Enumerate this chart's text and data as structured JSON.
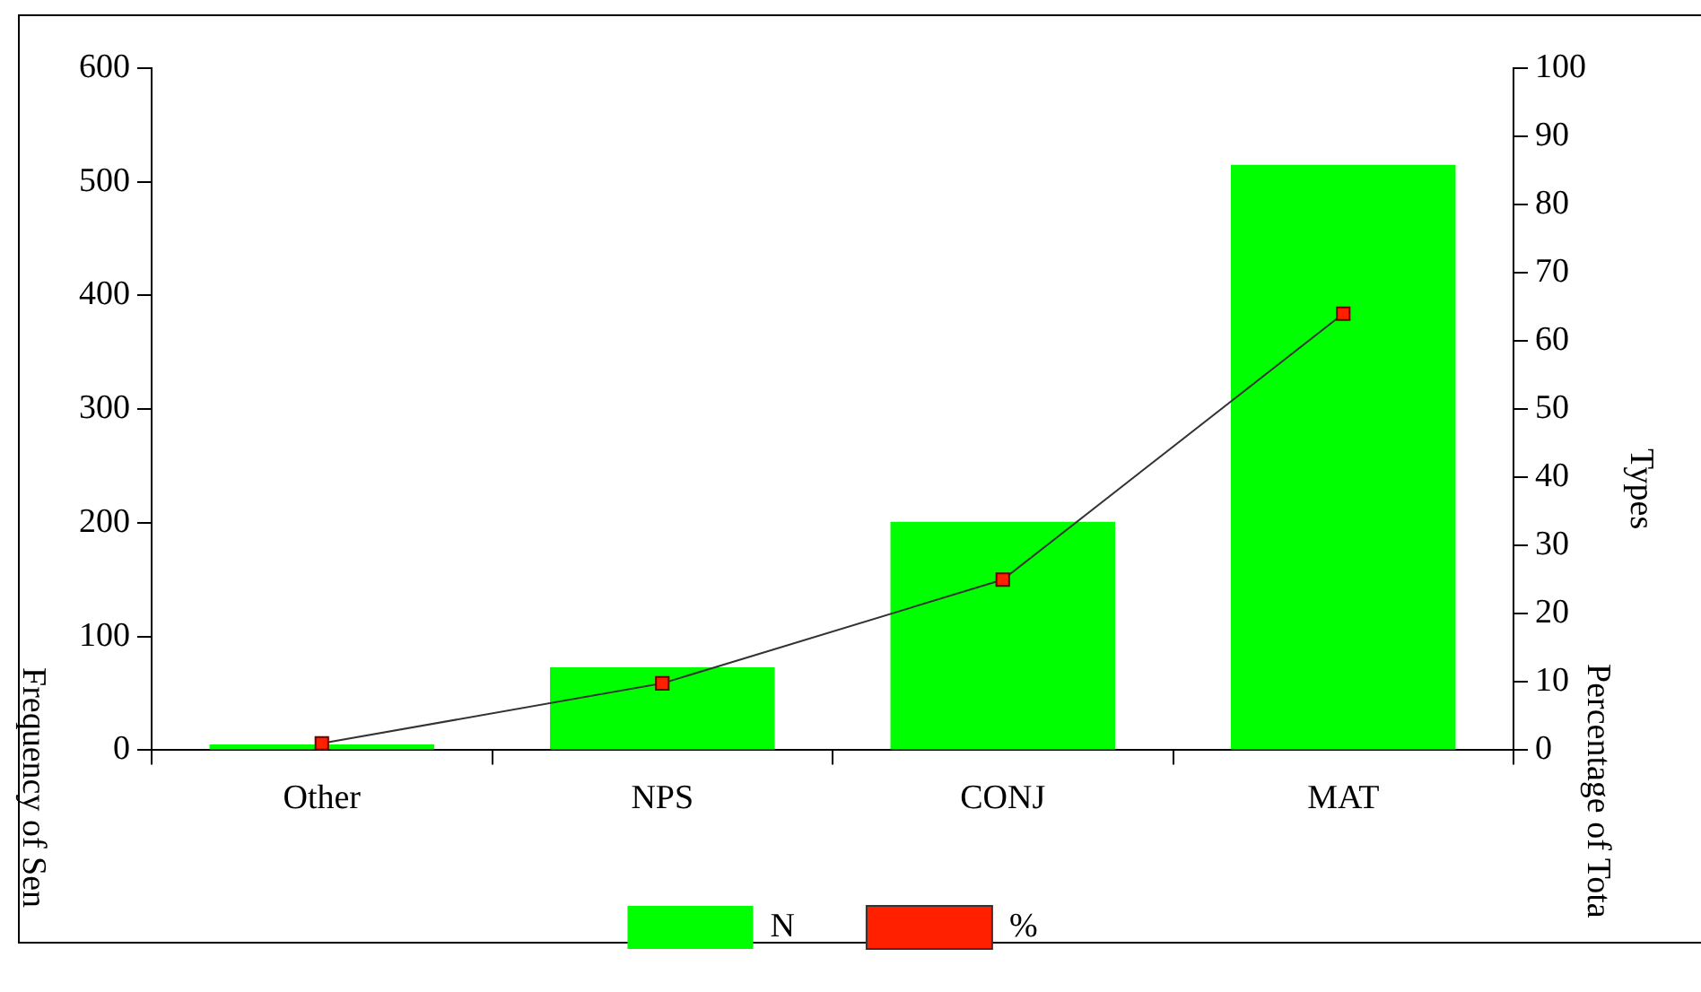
{
  "chart_data": {
    "type": "bar",
    "ylabel": "Frequency of Sen",
    "y2label": "Types\nPercentage of Tota",
    "categories": [
      "Other",
      "NPS",
      "CONJ",
      "MAT"
    ],
    "series": [
      {
        "name": "N",
        "color": "#00ff00",
        "values": [
          5,
          73,
          201,
          515
        ]
      },
      {
        "name": "%",
        "type": "line",
        "axis": "y2",
        "color": "#ff2000",
        "marker": "square",
        "values": [
          1,
          9.8,
          25,
          64
        ]
      }
    ],
    "ylim": [
      0,
      600
    ],
    "yticks": [
      0,
      100,
      200,
      300,
      400,
      500,
      600
    ],
    "y2lim": [
      0,
      100
    ],
    "y2ticks": [
      0,
      10,
      20,
      30,
      40,
      50,
      60,
      70,
      80,
      90,
      100
    ],
    "grid": false,
    "legend": "bottom"
  }
}
